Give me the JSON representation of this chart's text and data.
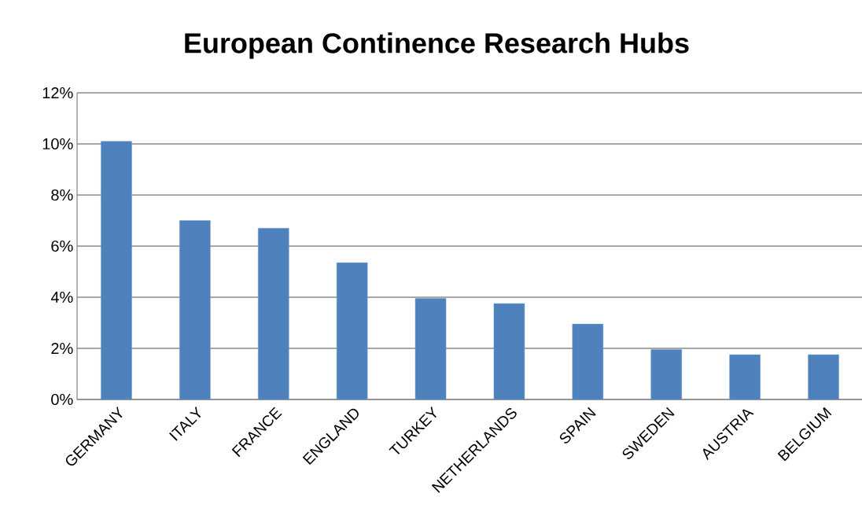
{
  "chart_data": {
    "type": "bar",
    "title": "European Continence Research Hubs",
    "categories": [
      "GERMANY",
      "ITALY",
      "FRANCE",
      "ENGLAND",
      "TURKEY",
      "NETHERLANDS",
      "SPAIN",
      "SWEDEN",
      "AUSTRIA",
      "BELGIUM"
    ],
    "values": [
      10.1,
      7.0,
      6.7,
      5.35,
      3.95,
      3.75,
      2.95,
      1.95,
      1.75,
      1.75
    ],
    "color": "#4f81bd",
    "ylim": [
      0,
      12
    ],
    "yticks": [
      {
        "value": 0,
        "label": "0%"
      },
      {
        "value": 2,
        "label": "2%"
      },
      {
        "value": 4,
        "label": "4%"
      },
      {
        "value": 6,
        "label": "6%"
      },
      {
        "value": 8,
        "label": "8%"
      },
      {
        "value": 10,
        "label": "10%"
      },
      {
        "value": 12,
        "label": "12%"
      }
    ],
    "grid": "y"
  }
}
